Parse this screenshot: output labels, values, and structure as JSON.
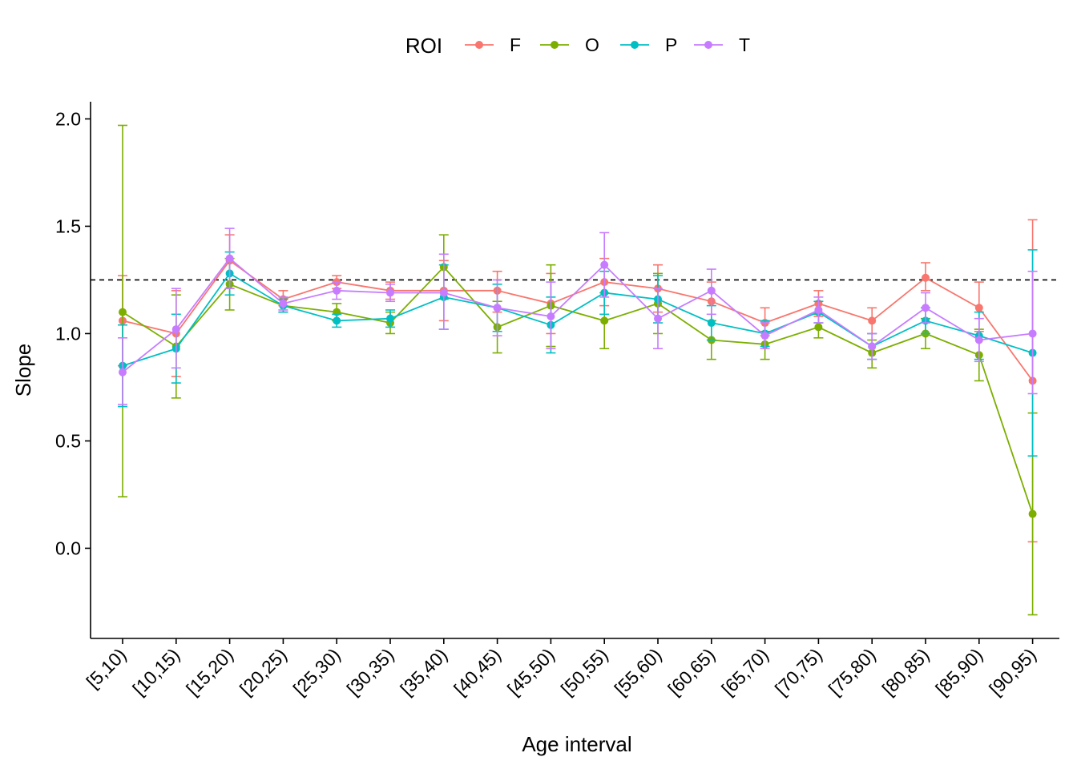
{
  "chart_data": {
    "type": "line",
    "xlabel": "Age interval",
    "ylabel": "Slope",
    "categories": [
      "[5,10)",
      "[10,15)",
      "[15,20)",
      "[20,25)",
      "[25,30)",
      "[30,35)",
      "[35,40)",
      "[40,45)",
      "[45,50)",
      "[50,55)",
      "[55,60)",
      "[60,65)",
      "[65,70)",
      "[70,75)",
      "[75,80)",
      "[80,85)",
      "[85,90)",
      "[90,95)"
    ],
    "ylim": [
      -0.42,
      2.08
    ],
    "yticks": [
      0.0,
      0.5,
      1.0,
      1.5,
      2.0
    ],
    "ytick_labels": [
      "0.0",
      "0.5",
      "1.0",
      "1.5",
      "2.0"
    ],
    "reference_line": {
      "y": 1.25,
      "style": "dashed",
      "color": "#000000"
    },
    "grid": false,
    "legend": {
      "title": "ROI",
      "placement": "top"
    },
    "series": [
      {
        "name": "F",
        "color": "#F8766D",
        "values": [
          1.06,
          1.0,
          1.34,
          1.16,
          1.24,
          1.2,
          1.2,
          1.2,
          1.14,
          1.24,
          1.21,
          1.15,
          1.05,
          1.14,
          1.06,
          1.26,
          1.12,
          0.78
        ],
        "lower": [
          0.85,
          0.8,
          1.21,
          1.13,
          1.21,
          1.16,
          1.06,
          1.1,
          1.0,
          1.13,
          1.1,
          1.06,
          0.99,
          1.08,
          1.0,
          1.2,
          1.01,
          0.03
        ],
        "upper": [
          1.27,
          1.2,
          1.46,
          1.2,
          1.27,
          1.24,
          1.34,
          1.29,
          1.28,
          1.35,
          1.32,
          1.24,
          1.12,
          1.2,
          1.12,
          1.33,
          1.24,
          1.53
        ]
      },
      {
        "name": "O",
        "color": "#7CAE00",
        "values": [
          1.1,
          0.94,
          1.23,
          1.13,
          1.1,
          1.05,
          1.31,
          1.03,
          1.13,
          1.06,
          1.14,
          0.97,
          0.95,
          1.03,
          0.91,
          1.0,
          0.9,
          0.16
        ],
        "lower": [
          0.24,
          0.7,
          1.11,
          1.1,
          1.06,
          1.0,
          1.16,
          0.91,
          0.94,
          0.93,
          1.0,
          0.88,
          0.88,
          0.98,
          0.84,
          0.93,
          0.78,
          -0.31
        ],
        "upper": [
          1.97,
          1.18,
          1.35,
          1.16,
          1.14,
          1.1,
          1.46,
          1.15,
          1.32,
          1.19,
          1.28,
          1.06,
          1.01,
          1.09,
          0.97,
          1.07,
          1.02,
          0.63
        ]
      },
      {
        "name": "P",
        "color": "#00BFC4",
        "values": [
          0.85,
          0.93,
          1.28,
          1.13,
          1.06,
          1.07,
          1.17,
          1.12,
          1.04,
          1.19,
          1.16,
          1.05,
          1.0,
          1.1,
          0.94,
          1.06,
          0.99,
          0.91
        ],
        "lower": [
          0.66,
          0.77,
          1.18,
          1.1,
          1.03,
          1.03,
          1.02,
          1.01,
          0.91,
          1.09,
          1.05,
          0.97,
          0.94,
          1.05,
          0.88,
          1.0,
          0.88,
          0.43
        ],
        "upper": [
          1.04,
          1.09,
          1.38,
          1.16,
          1.09,
          1.11,
          1.32,
          1.23,
          1.17,
          1.29,
          1.27,
          1.13,
          1.06,
          1.15,
          1.0,
          1.12,
          1.1,
          1.39
        ]
      },
      {
        "name": "T",
        "color": "#C77CFF",
        "values": [
          0.82,
          1.02,
          1.35,
          1.14,
          1.2,
          1.19,
          1.19,
          1.12,
          1.08,
          1.32,
          1.07,
          1.2,
          0.99,
          1.11,
          0.94,
          1.12,
          0.97,
          1.0
        ],
        "lower": [
          0.67,
          0.84,
          1.21,
          1.11,
          1.16,
          1.15,
          1.02,
          0.99,
          0.93,
          1.17,
          0.93,
          1.09,
          0.93,
          1.05,
          0.88,
          1.05,
          0.87,
          0.72
        ],
        "upper": [
          0.98,
          1.21,
          1.49,
          1.17,
          1.24,
          1.23,
          1.37,
          1.25,
          1.24,
          1.47,
          1.21,
          1.3,
          1.05,
          1.17,
          1.0,
          1.19,
          1.07,
          1.29
        ]
      }
    ]
  }
}
